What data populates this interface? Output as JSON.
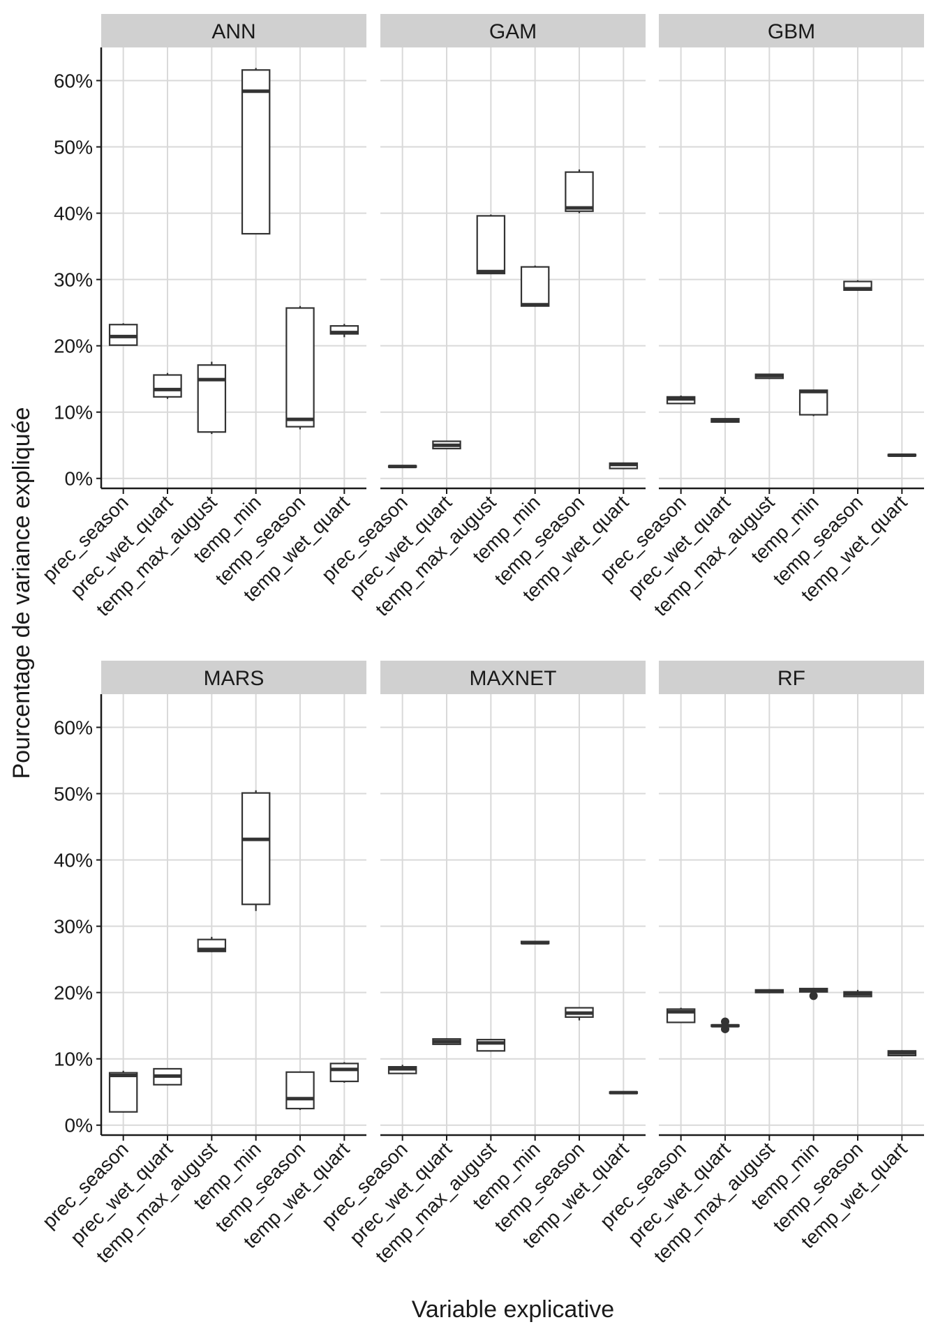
{
  "chart_data": {
    "type": "boxplot",
    "layout": "facet-grid 2x3",
    "xlabel": "Variable explicative",
    "ylabel": "Pourcentage de variance expliquée",
    "ylim": [
      -1.5,
      65
    ],
    "yticks": [
      0,
      10,
      20,
      30,
      40,
      50,
      60
    ],
    "ytick_suffix": "%",
    "categories": [
      "prec_season",
      "prec_wet_quart",
      "temp_max_august",
      "temp_min",
      "temp_season",
      "temp_wet_quart"
    ],
    "panels": [
      {
        "name": "ANN",
        "boxes": [
          {
            "min": 20.0,
            "q1": 20.1,
            "median": 21.4,
            "q3": 23.2,
            "max": 23.4
          },
          {
            "min": 12.0,
            "q1": 12.3,
            "median": 13.4,
            "q3": 15.6,
            "max": 15.9
          },
          {
            "min": 6.7,
            "q1": 7.0,
            "median": 14.9,
            "q3": 17.1,
            "max": 17.6
          },
          {
            "min": 36.8,
            "q1": 36.9,
            "median": 58.4,
            "q3": 61.6,
            "max": 61.9
          },
          {
            "min": 7.4,
            "q1": 7.8,
            "median": 8.9,
            "q3": 25.7,
            "max": 26.0
          },
          {
            "min": 21.3,
            "q1": 21.8,
            "median": 22.0,
            "q3": 23.0,
            "max": 23.3
          }
        ]
      },
      {
        "name": "GAM",
        "boxes": [
          {
            "min": 1.6,
            "q1": 1.7,
            "median": 1.8,
            "q3": 1.9,
            "max": 2.0
          },
          {
            "min": 4.4,
            "q1": 4.5,
            "median": 5.0,
            "q3": 5.6,
            "max": 5.7
          },
          {
            "min": 30.8,
            "q1": 30.9,
            "median": 31.2,
            "q3": 39.6,
            "max": 39.8
          },
          {
            "min": 25.9,
            "q1": 26.0,
            "median": 26.2,
            "q3": 31.9,
            "max": 32.1
          },
          {
            "min": 40.0,
            "q1": 40.3,
            "median": 40.8,
            "q3": 46.2,
            "max": 46.6
          },
          {
            "min": 1.4,
            "q1": 1.5,
            "median": 2.1,
            "q3": 2.3,
            "max": 2.4
          }
        ]
      },
      {
        "name": "GBM",
        "boxes": [
          {
            "min": 11.2,
            "q1": 11.3,
            "median": 12.0,
            "q3": 12.3,
            "max": 12.5
          },
          {
            "min": 8.4,
            "q1": 8.5,
            "median": 8.8,
            "q3": 9.0,
            "max": 9.1
          },
          {
            "min": 15.0,
            "q1": 15.1,
            "median": 15.5,
            "q3": 15.7,
            "max": 15.8
          },
          {
            "min": 9.4,
            "q1": 9.6,
            "median": 13.1,
            "q3": 13.3,
            "max": 13.4
          },
          {
            "min": 28.3,
            "q1": 28.4,
            "median": 28.6,
            "q3": 29.7,
            "max": 29.9
          },
          {
            "min": 3.3,
            "q1": 3.4,
            "median": 3.5,
            "q3": 3.6,
            "max": 3.7
          }
        ]
      },
      {
        "name": "MARS",
        "boxes": [
          {
            "min": 1.9,
            "q1": 2.0,
            "median": 7.5,
            "q3": 7.9,
            "max": 8.2
          },
          {
            "min": 6.0,
            "q1": 6.1,
            "median": 7.4,
            "q3": 8.5,
            "max": 8.6
          },
          {
            "min": 26.1,
            "q1": 26.2,
            "median": 26.5,
            "q3": 28.0,
            "max": 28.4
          },
          {
            "min": 32.3,
            "q1": 33.3,
            "median": 43.1,
            "q3": 50.1,
            "max": 50.5
          },
          {
            "min": 2.3,
            "q1": 2.5,
            "median": 4.0,
            "q3": 8.0,
            "max": 8.1
          },
          {
            "min": 6.4,
            "q1": 6.6,
            "median": 8.4,
            "q3": 9.3,
            "max": 9.5
          }
        ]
      },
      {
        "name": "MAXNET",
        "boxes": [
          {
            "min": 7.7,
            "q1": 7.8,
            "median": 8.5,
            "q3": 8.8,
            "max": 9.1
          },
          {
            "min": 12.1,
            "q1": 12.2,
            "median": 12.6,
            "q3": 13.0,
            "max": 13.1
          },
          {
            "min": 11.1,
            "q1": 11.2,
            "median": 12.4,
            "q3": 12.9,
            "max": 13.0
          },
          {
            "min": 27.3,
            "q1": 27.4,
            "median": 27.5,
            "q3": 27.7,
            "max": 27.8
          },
          {
            "min": 15.8,
            "q1": 16.3,
            "median": 16.9,
            "q3": 17.7,
            "max": 17.8
          },
          {
            "min": 4.7,
            "q1": 4.8,
            "median": 4.9,
            "q3": 5.0,
            "max": 5.1
          }
        ]
      },
      {
        "name": "RF",
        "boxes": [
          {
            "min": 15.4,
            "q1": 15.5,
            "median": 17.1,
            "q3": 17.5,
            "max": 17.7
          },
          {
            "min": 14.8,
            "q1": 14.9,
            "median": 15.0,
            "q3": 15.1,
            "max": 15.2,
            "outliers": [
              14.5,
              15.6
            ]
          },
          {
            "min": 19.9,
            "q1": 20.0,
            "median": 20.2,
            "q3": 20.4,
            "max": 20.5
          },
          {
            "min": 20.0,
            "q1": 20.1,
            "median": 20.4,
            "q3": 20.6,
            "max": 20.7,
            "outliers": [
              19.5
            ]
          },
          {
            "min": 19.3,
            "q1": 19.4,
            "median": 19.8,
            "q3": 20.1,
            "max": 20.4
          },
          {
            "min": 10.4,
            "q1": 10.5,
            "median": 10.9,
            "q3": 11.2,
            "max": 11.3
          }
        ]
      }
    ]
  }
}
